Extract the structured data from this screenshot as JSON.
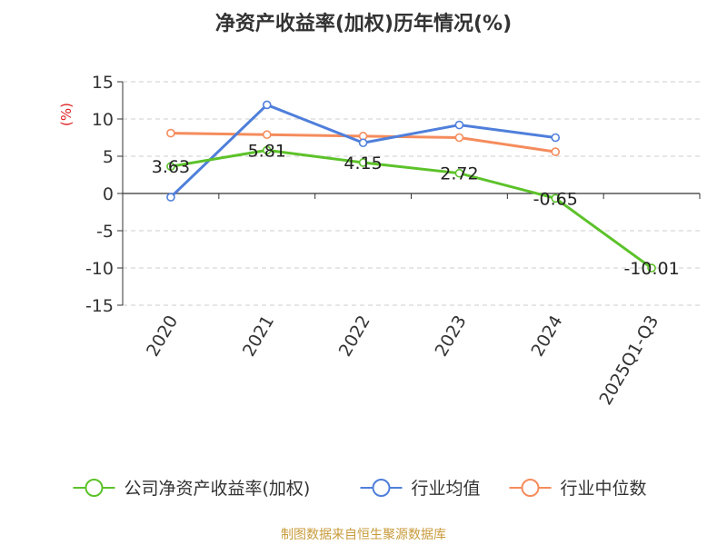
{
  "chart_data": {
    "type": "line",
    "title": "净资产收益率(加权)历年情况(%)",
    "ylabel": "(%)",
    "categories": [
      "2020",
      "2021",
      "2022",
      "2023",
      "2024",
      "2025Q1-Q3"
    ],
    "ylim": [
      -15,
      15
    ],
    "yticks": [
      "15",
      "10",
      "5",
      "0",
      "-5",
      "-10",
      "-15"
    ],
    "grid": true,
    "legend_position": "bottom",
    "series": [
      {
        "name": "公司净资产收益率(加权)",
        "color": "#5cc22a",
        "values": [
          3.63,
          5.81,
          4.15,
          2.72,
          -0.65,
          -10.01
        ],
        "labels": [
          "3.63",
          "5.81",
          "4.15",
          "2.72",
          "-0.65",
          "-10.01"
        ]
      },
      {
        "name": "行业均值",
        "color": "#4f7fdb",
        "values": [
          -0.5,
          11.9,
          6.8,
          9.2,
          7.5,
          null
        ]
      },
      {
        "name": "行业中位数",
        "color": "#f58c5d",
        "values": [
          8.1,
          7.9,
          7.7,
          7.5,
          5.6,
          null
        ]
      }
    ],
    "source": "制图数据来自恒生聚源数据库",
    "source_color": "#c89b3c",
    "unit_color": "#e02020"
  }
}
